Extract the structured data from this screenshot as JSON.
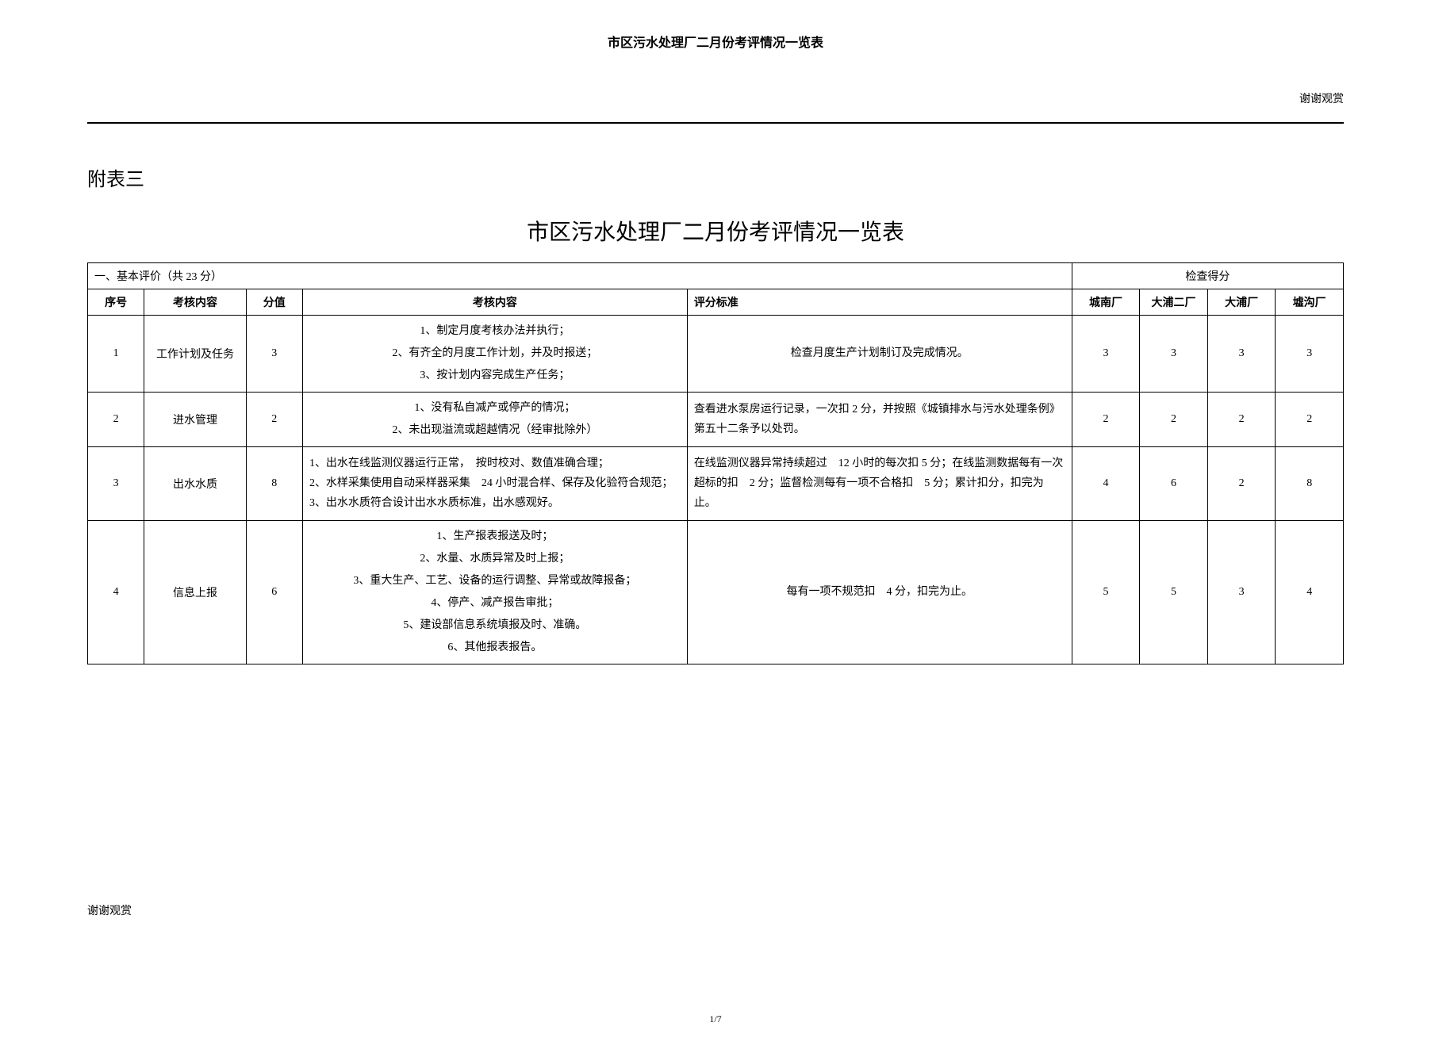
{
  "page_header": "市区污水处理厂二月份考评情况一览表",
  "top_right": "谢谢观赏",
  "section_label": "附表三",
  "main_title": "市区污水处理厂二月份考评情况一览表",
  "table": {
    "basic_header": "一、基本评价（共 23 分）",
    "score_header": "检查得分",
    "columns": {
      "seq": "序号",
      "item": "考核内容",
      "score": "分值",
      "content": "考核内容",
      "standard": "评分标准",
      "plant1": "城南厂",
      "plant2": "大浦二厂",
      "plant3": "大浦厂",
      "plant4": "墟沟厂"
    },
    "rows": [
      {
        "seq": "1",
        "item": "工作计划及任务",
        "score": "3",
        "content": "1、制定月度考核办法并执行；\n2、有齐全的月度工作计划，并及时报送；\n3、按计划内容完成生产任务；",
        "standard": "检查月度生产计划制订及完成情况。",
        "p1": "3",
        "p2": "3",
        "p3": "3",
        "p4": "3"
      },
      {
        "seq": "2",
        "item": "进水管理",
        "score": "2",
        "content": "1、没有私自减产或停产的情况；\n2、未出现溢流或超越情况（经审批除外）",
        "standard": "查看进水泵房运行记录，一次扣 2 分，并按照《城镇排水与污水处理条例》第五十二条予以处罚。",
        "p1": "2",
        "p2": "2",
        "p3": "2",
        "p4": "2"
      },
      {
        "seq": "3",
        "item": "出水水质",
        "score": "8",
        "content": "1、出水在线监测仪器运行正常，　按时校对、数值准确合理；\n2、水样采集使用自动采样器采集　24 小时混合样、保存及化验符合规范；\n3、出水水质符合设计出水水质标准，出水感观好。",
        "standard": "在线监测仪器异常持续超过　12 小时的每次扣 5 分；在线监测数据每有一次超标的扣　2 分；监督检测每有一项不合格扣　5 分；累计扣分，扣完为止。",
        "p1": "4",
        "p2": "6",
        "p3": "2",
        "p4": "8"
      },
      {
        "seq": "4",
        "item": "信息上报",
        "score": "6",
        "content": "1、生产报表报送及时；\n2、水量、水质异常及时上报；\n3、重大生产、工艺、设备的运行调整、异常或故障报备；\n4、停产、减产报告审批；\n5、建设部信息系统填报及时、准确。\n6、其他报表报告。",
        "standard": "每有一项不规范扣　4 分，扣完为止。",
        "p1": "5",
        "p2": "5",
        "p3": "3",
        "p4": "4"
      }
    ]
  },
  "footer_left": "谢谢观赏",
  "page_num": "1/7"
}
